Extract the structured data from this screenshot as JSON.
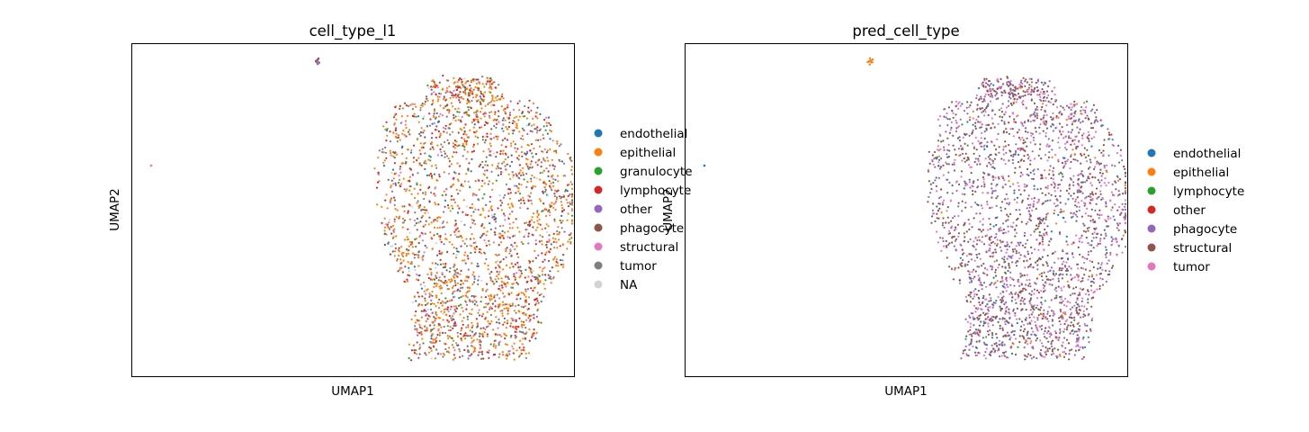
{
  "chart_data": [
    {
      "type": "scatter",
      "title": "cell_type_l1",
      "xlabel": "UMAP1",
      "ylabel": "UMAP2",
      "xticks": [],
      "yticks": [],
      "grid": false,
      "legend_placement": "right",
      "series": [
        {
          "name": "endothelial",
          "color": "#1f77b4",
          "share": 0.06
        },
        {
          "name": "epithelial",
          "color": "#ff7f0e",
          "share": 0.42
        },
        {
          "name": "granulocyte",
          "color": "#2ca02c",
          "share": 0.03
        },
        {
          "name": "lymphocyte",
          "color": "#d62728",
          "share": 0.2
        },
        {
          "name": "other",
          "color": "#9467bd",
          "share": 0.04
        },
        {
          "name": "phagocyte",
          "color": "#8c564b",
          "share": 0.07
        },
        {
          "name": "structural",
          "color": "#e377c2",
          "share": 0.05
        },
        {
          "name": "tumor",
          "color": "#7f7f7f",
          "share": 0.1
        },
        {
          "name": "NA",
          "color": "#d3d3d3",
          "share": 0.03
        }
      ]
    },
    {
      "type": "scatter",
      "title": "pred_cell_type",
      "xlabel": "UMAP1",
      "ylabel": "UMAP2",
      "xticks": [],
      "yticks": [],
      "grid": false,
      "legend_placement": "right",
      "series": [
        {
          "name": "endothelial",
          "color": "#1f77b4",
          "share": 0.07
        },
        {
          "name": "epithelial",
          "color": "#ff7f0e",
          "share": 0.02
        },
        {
          "name": "lymphocyte",
          "color": "#2ca02c",
          "share": 0.01
        },
        {
          "name": "other",
          "color": "#d62728",
          "share": 0.02
        },
        {
          "name": "phagocyte",
          "color": "#9467bd",
          "share": 0.25
        },
        {
          "name": "structural",
          "color": "#8c564b",
          "share": 0.4
        },
        {
          "name": "tumor",
          "color": "#e377c2",
          "share": 0.23
        }
      ]
    }
  ]
}
